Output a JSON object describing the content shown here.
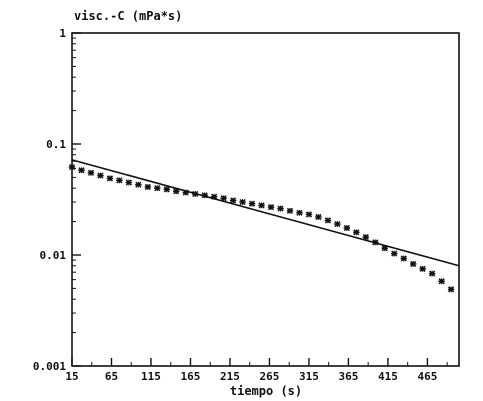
{
  "chart_data": {
    "type": "scatter",
    "title": "",
    "ylabel": "visc.-C (mPa*s)",
    "xlabel": "tiempo (s)",
    "y_scale": "log",
    "xlim": [
      15,
      505
    ],
    "ylim": [
      0.001,
      1
    ],
    "x_ticks": [
      15,
      65,
      115,
      165,
      215,
      265,
      315,
      365,
      415,
      465
    ],
    "x_tick_labels": [
      "15",
      "65",
      "115",
      "165",
      "215",
      "265",
      "315",
      "365",
      "415",
      "465"
    ],
    "y_ticks": [
      0.001,
      0.01,
      0.1,
      1
    ],
    "y_tick_labels": [
      "0.001",
      "0.01",
      "0.1",
      "1"
    ],
    "grid": false,
    "series": [
      {
        "marker": "asterisk",
        "x": [
          15,
          27,
          39,
          51,
          63,
          75,
          87,
          99,
          111,
          123,
          135,
          147,
          159,
          171,
          183,
          195,
          207,
          219,
          231,
          243,
          255,
          267,
          279,
          291,
          303,
          315,
          327,
          339,
          351,
          363,
          375,
          387,
          399,
          411,
          423,
          435,
          447,
          459,
          471,
          483,
          495
        ],
        "y": [
          0.062,
          0.058,
          0.055,
          0.052,
          0.049,
          0.047,
          0.045,
          0.043,
          0.041,
          0.04,
          0.039,
          0.0375,
          0.0365,
          0.0355,
          0.0345,
          0.0335,
          0.0325,
          0.031,
          0.03,
          0.029,
          0.028,
          0.027,
          0.0262,
          0.025,
          0.024,
          0.0232,
          0.022,
          0.0205,
          0.019,
          0.0175,
          0.016,
          0.0145,
          0.013,
          0.0115,
          0.0103,
          0.0093,
          0.0083,
          0.0075,
          0.0068,
          0.0058,
          0.0049
        ]
      }
    ],
    "fit_line": {
      "x": [
        15,
        505
      ],
      "y": [
        0.072,
        0.008
      ]
    },
    "colors": {
      "ink": "#111111",
      "background": "#ffffff"
    }
  }
}
